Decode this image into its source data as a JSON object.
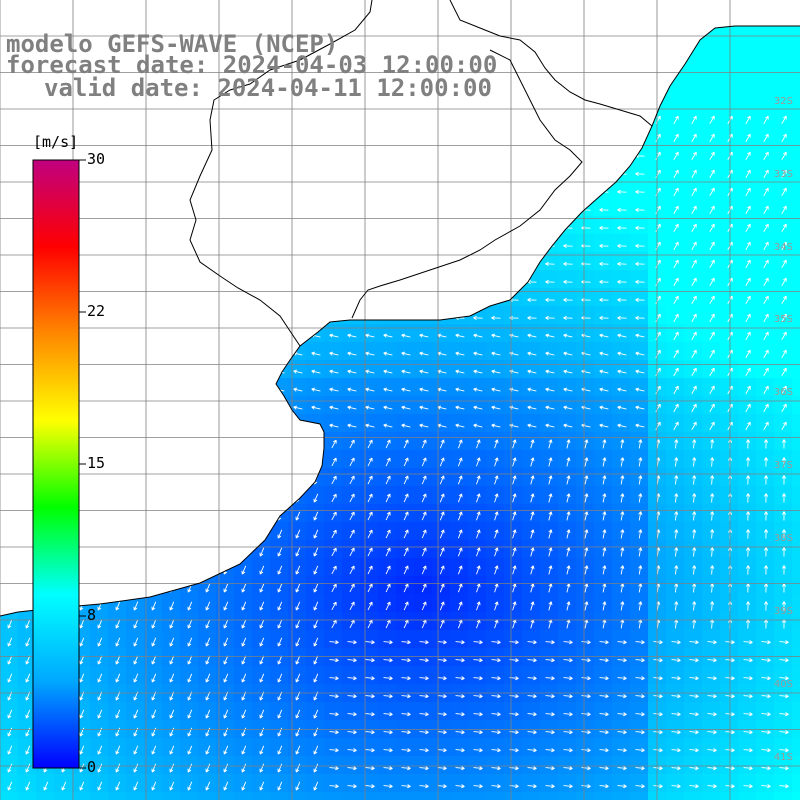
{
  "header": {
    "line1": "modelo GEFS-WAVE (NCEP)",
    "line2": "forecast date: 2024-04-03 12:00:00",
    "line3": "valid date: 2024-04-11 12:00:00"
  },
  "colorbar": {
    "unit": "[m/s]",
    "ticks": [
      "30",
      "22",
      "15",
      "8",
      "0"
    ],
    "range": [
      0,
      30
    ],
    "colors": [
      "#0000ff",
      "#00a8ff",
      "#00ffff",
      "#00ff00",
      "#ffff00",
      "#ff8800",
      "#ff0000",
      "#c00080"
    ]
  },
  "map": {
    "variable": "wind speed with direction arrows",
    "land_color": "#ffffff",
    "coastline_color": "#000000",
    "grid_color": "#808080",
    "lat_labels": [
      "32S",
      "33S",
      "34S",
      "35S",
      "36S",
      "37S",
      "38S",
      "39S",
      "40S",
      "41S"
    ]
  }
}
